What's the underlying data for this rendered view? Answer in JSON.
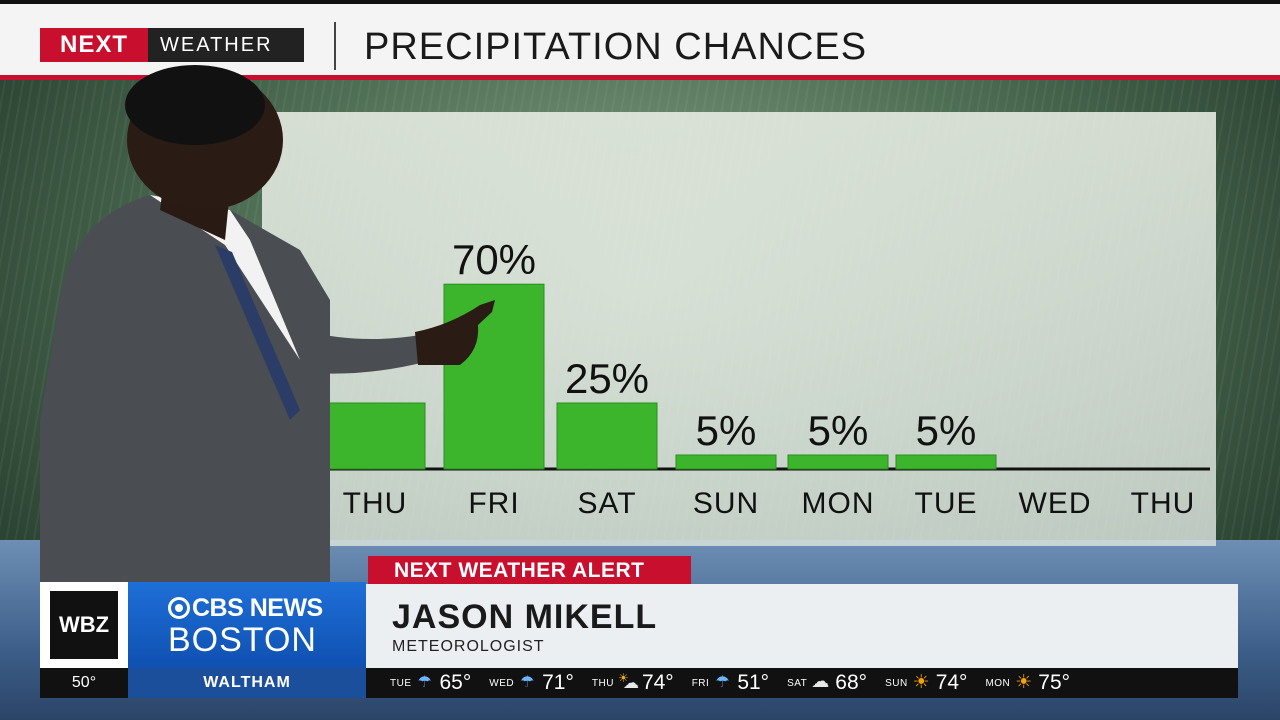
{
  "header": {
    "brand_next": "NEXT",
    "brand_weather": "WEATHER",
    "title": "PRECIPITATION CHANCES"
  },
  "chart_data": {
    "type": "bar",
    "title": "PRECIPITATION CHANCES",
    "categories": [
      "THU",
      "FRI",
      "SAT",
      "SUN",
      "MON",
      "TUE",
      "WED",
      "THU"
    ],
    "values": [
      25,
      70,
      25,
      5,
      5,
      5,
      null,
      null
    ],
    "value_labels": [
      "",
      "70%",
      "25%",
      "5%",
      "5%",
      "5%",
      "",
      ""
    ],
    "unit": "%",
    "ylim": [
      0,
      100
    ],
    "grid": false,
    "bar_color": "#3cb52c"
  },
  "lower_third": {
    "alert_tag": "NEXT WEATHER ALERT",
    "station_logo": "WBZ",
    "network_top": "CBS NEWS",
    "network_bottom": "BOSTON",
    "name": "JASON MIKELL",
    "role": "METEOROLOGIST"
  },
  "ticker": {
    "current_temp": "50°",
    "location": "WALTHAM",
    "forecast": [
      {
        "day": "TUE",
        "icon": "rain-icon",
        "temp": "65°"
      },
      {
        "day": "WED",
        "icon": "rain-icon",
        "temp": "71°"
      },
      {
        "day": "THU",
        "icon": "partly-cloudy-icon",
        "temp": "74°"
      },
      {
        "day": "FRI",
        "icon": "rain-icon",
        "temp": "51°"
      },
      {
        "day": "SAT",
        "icon": "cloud-icon",
        "temp": "68°"
      },
      {
        "day": "SUN",
        "icon": "sun-icon",
        "temp": "74°"
      },
      {
        "day": "MON",
        "icon": "sun-icon",
        "temp": "75°"
      }
    ]
  },
  "colors": {
    "accent_red": "#c8102e",
    "cbs_blue": "#1e6fd8",
    "bar_green": "#3cb52c"
  }
}
